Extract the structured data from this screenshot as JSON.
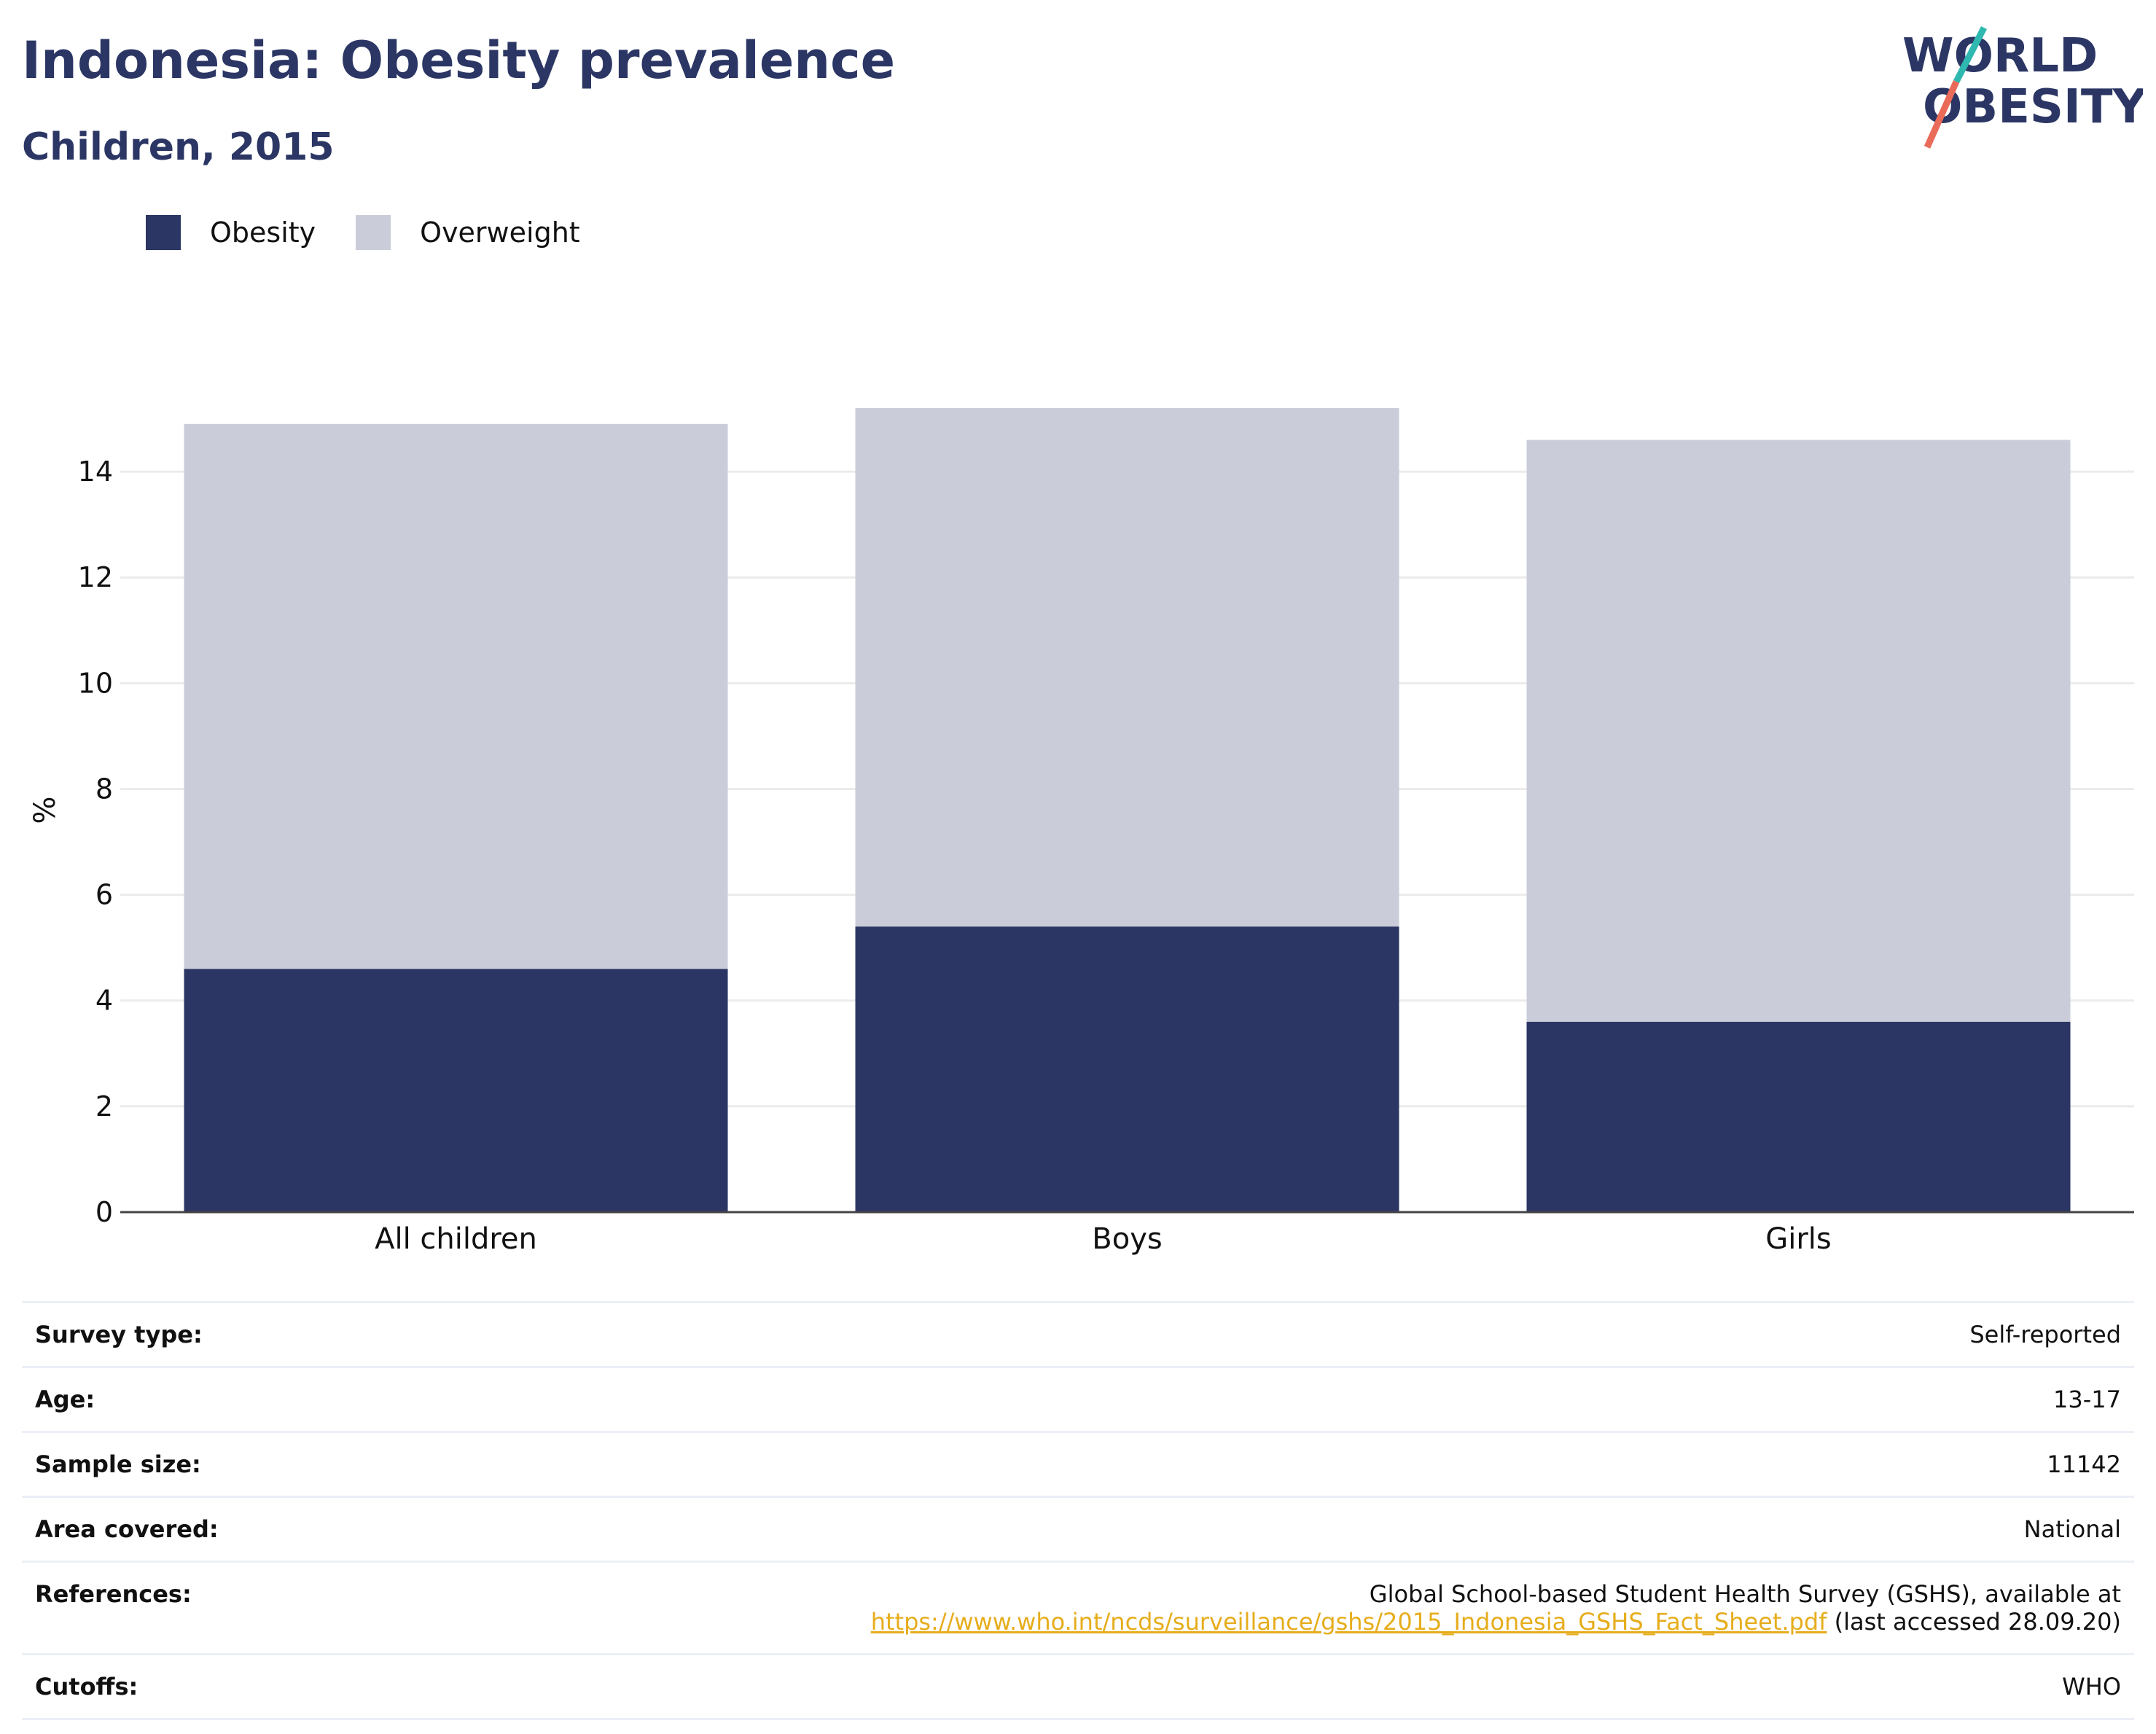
{
  "header": {
    "title": "Indonesia: Obesity prevalence",
    "subtitle": "Children, 2015",
    "logo_line1": "WORLD",
    "logo_line2": "OBESITY"
  },
  "legend": [
    {
      "label": "Obesity",
      "color": "#2b3664"
    },
    {
      "label": "Overweight",
      "color": "#cacdd9"
    }
  ],
  "chart_data": {
    "type": "bar",
    "stacked": true,
    "categories": [
      "All children",
      "Boys",
      "Girls"
    ],
    "series": [
      {
        "name": "Obesity",
        "values": [
          4.6,
          5.4,
          3.6
        ],
        "color": "#2b3664"
      },
      {
        "name": "Overweight",
        "values": [
          10.3,
          9.8,
          11.0
        ],
        "color": "#cacdd9"
      }
    ],
    "totals": [
      14.9,
      15.2,
      14.6
    ],
    "ylabel": "%",
    "yticks": [
      0,
      2,
      4,
      6,
      8,
      10,
      12,
      14
    ],
    "ylim": [
      0,
      15.2
    ],
    "grid": true,
    "legend_position": "top-left"
  },
  "info_table": {
    "rows": [
      {
        "label": "Survey type:",
        "value": "Self-reported"
      },
      {
        "label": "Age:",
        "value": "13-17"
      },
      {
        "label": "Sample size:",
        "value": "11142"
      },
      {
        "label": "Area covered:",
        "value": "National"
      },
      {
        "label": "References:",
        "value_line1": "Global School-based Student Health Survey (GSHS), available at",
        "link": "https://www.who.int/ncds/surveillance/gshs/2015_Indonesia_GSHS_Fact_Sheet.pdf",
        "value_suffix": " (last accessed 28.09.20)"
      },
      {
        "label": "Cutoffs:",
        "value": "WHO"
      }
    ]
  }
}
